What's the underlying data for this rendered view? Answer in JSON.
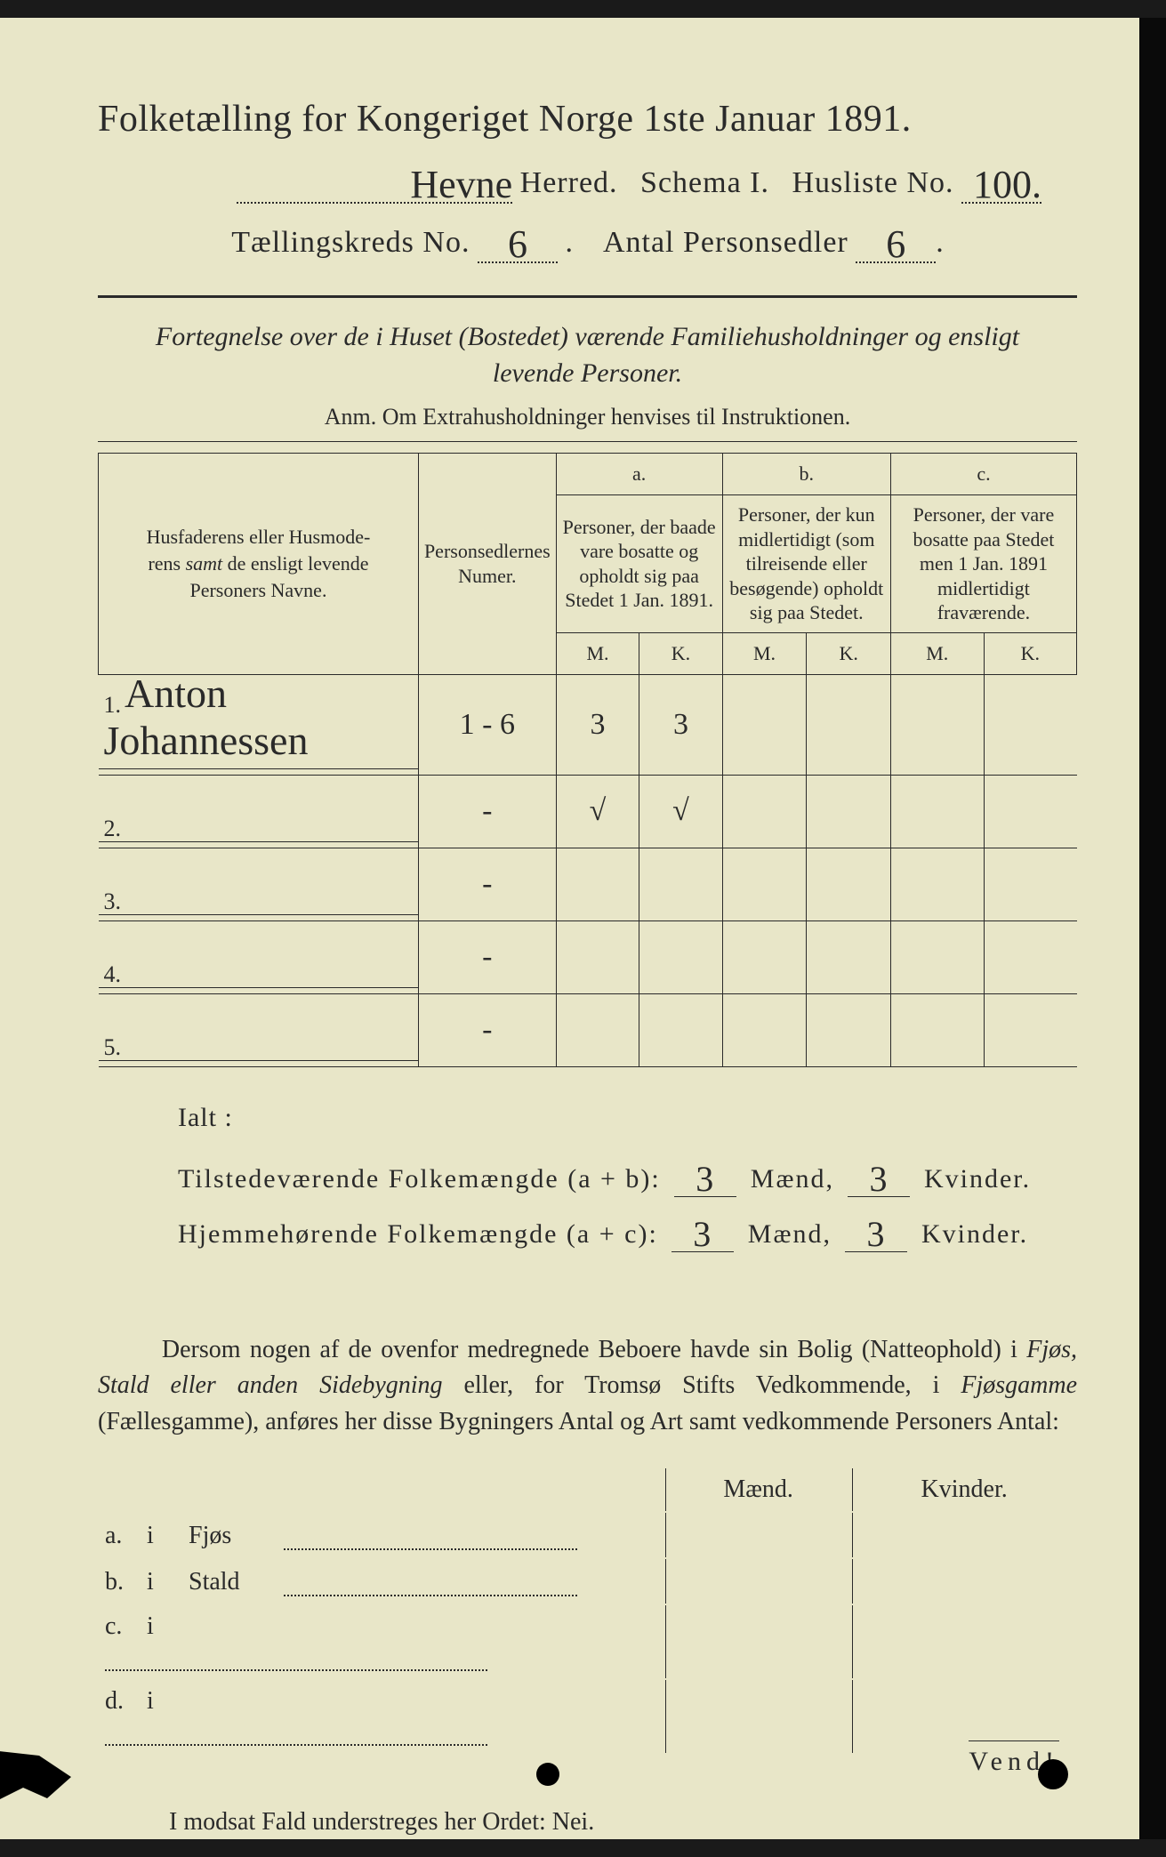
{
  "colors": {
    "paper": "#e8e6c8",
    "ink": "#2a2a2a",
    "background": "#1a1a1a"
  },
  "title": "Folketælling for Kongeriget Norge 1ste Januar 1891.",
  "header": {
    "herred_handwritten": "Hevne",
    "herred_label": "Herred.",
    "schema_label": "Schema I.",
    "husliste_label": "Husliste No.",
    "husliste_no": "100.",
    "kreds_label": "Tællingskreds No.",
    "kreds_no": "6",
    "antal_label": "Antal Personsedler",
    "antal_no": "6"
  },
  "intro": {
    "line1": "Fortegnelse over de i Huset (Bostedet) værende Familiehusholdninger og ensligt",
    "line2": "levende Personer.",
    "anm": "Anm. Om Extrahusholdninger henvises til Instruktionen."
  },
  "table": {
    "col_name": "Husfaderens eller Husmoderens samt de ensligt levende Personers Navne.",
    "col_sedler": "Personsedlernes Numer.",
    "col_a_label": "a.",
    "col_a_desc": "Personer, der baade vare bosatte og opholdt sig paa Stedet 1 Jan. 1891.",
    "col_b_label": "b.",
    "col_b_desc": "Personer, der kun midlertidigt (som tilreisende eller besøgende) opholdt sig paa Stedet.",
    "col_c_label": "c.",
    "col_c_desc": "Personer, der vare bosatte paa Stedet men 1 Jan. 1891 midlertidigt fraværende.",
    "m": "M.",
    "k": "K.",
    "rows": [
      {
        "num": "1.",
        "name": "Anton Johannessen",
        "sedler": "1 - 6",
        "a_m": "3",
        "a_k": "3",
        "b_m": "",
        "b_k": "",
        "c_m": "",
        "c_k": ""
      },
      {
        "num": "2.",
        "name": "",
        "sedler": "-",
        "a_m": "√",
        "a_k": "√",
        "b_m": "",
        "b_k": "",
        "c_m": "",
        "c_k": ""
      },
      {
        "num": "3.",
        "name": "",
        "sedler": "-",
        "a_m": "",
        "a_k": "",
        "b_m": "",
        "b_k": "",
        "c_m": "",
        "c_k": ""
      },
      {
        "num": "4.",
        "name": "",
        "sedler": "-",
        "a_m": "",
        "a_k": "",
        "b_m": "",
        "b_k": "",
        "c_m": "",
        "c_k": ""
      },
      {
        "num": "5.",
        "name": "",
        "sedler": "-",
        "a_m": "",
        "a_k": "",
        "b_m": "",
        "b_k": "",
        "c_m": "",
        "c_k": ""
      }
    ]
  },
  "ialt": {
    "title": "Ialt :",
    "line1_label": "Tilstedeværende Folkemængde (a + b):",
    "line2_label": "Hjemmehørende Folkemængde (a + c):",
    "maend": "Mænd,",
    "kvinder": "Kvinder.",
    "l1_m": "3",
    "l1_k": "3",
    "l2_m": "3",
    "l2_k": "3"
  },
  "dersom": {
    "text1": "Dersom nogen af de ovenfor medregnede Beboere havde sin Bolig (Natteophold) i ",
    "it1": "Fjøs, Stald eller anden Sidebygning",
    "text2": " eller, for Tromsø Stifts Vedkommende, i ",
    "it2": "Fjøsgamme",
    "text3": " (Fællesgamme), anføres her disse Bygningers Antal og Art samt vedkommende Personers Antal:"
  },
  "bottom": {
    "maend": "Mænd.",
    "kvinder": "Kvinder.",
    "rows": [
      {
        "label_a": "a.",
        "label_i": "i",
        "label": "Fjøs"
      },
      {
        "label_a": "b.",
        "label_i": "i",
        "label": "Stald"
      },
      {
        "label_a": "c.",
        "label_i": "i",
        "label": ""
      },
      {
        "label_a": "d.",
        "label_i": "i",
        "label": ""
      }
    ]
  },
  "nei": "I modsat Fald understreges her Ordet: Nei.",
  "vend": "Vend!"
}
